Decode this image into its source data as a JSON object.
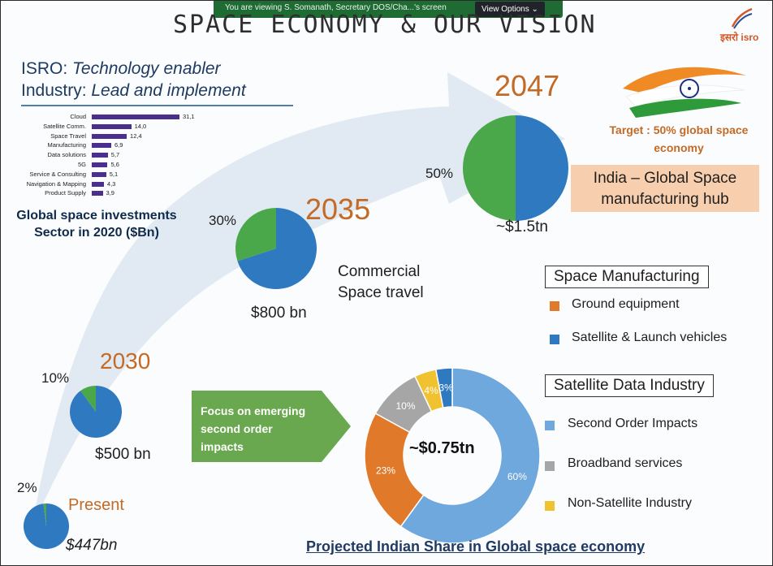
{
  "zoom_banner": {
    "viewing_text": "You are viewing S. Somanath, Secretary DOS/Cha...'s screen",
    "view_options_label": "View Options"
  },
  "slide": {
    "title": "SPACE ECONOMY & OUR VISION",
    "logo_text": "इसरो isro",
    "tagline": {
      "line1_prefix": "ISRO: ",
      "line1_emph": "Technology enabler",
      "line2_prefix": "Industry: ",
      "line2_emph": "Lead and implement"
    },
    "chart_caption_line1": "Global space investments",
    "chart_caption_line2": "Sector in 2020 ($Bn)",
    "milestones": [
      {
        "year": "Present",
        "pct": "2%",
        "value": "$447bn"
      },
      {
        "year": "2030",
        "pct": "10%",
        "value": "$500 bn"
      },
      {
        "year": "2035",
        "pct": "30%",
        "value": "$800 bn"
      },
      {
        "year": "2047",
        "pct": "50%",
        "value": "~$1.5tn"
      }
    ],
    "target_line1": "Target : 50% global space",
    "target_line2": "economy",
    "hub_line1": "India – Global Space",
    "hub_line2": "manufacturing hub",
    "commercial_line1": "Commercial",
    "commercial_line2": "Space travel",
    "legend_manufacturing": {
      "heading": "Space Manufacturing",
      "items": [
        {
          "label": "Ground equipment",
          "color": "#e07a2a"
        },
        {
          "label": "Satellite & Launch vehicles",
          "color": "#2f79c1"
        }
      ]
    },
    "legend_data_industry": {
      "heading": "Satellite Data Industry",
      "items": [
        {
          "label": "Second Order Impacts",
          "color": "#6fa8dc"
        },
        {
          "label": "Broadband services",
          "color": "#a6a6a6"
        },
        {
          "label": "Non-Satellite Industry",
          "color": "#f0c230"
        }
      ]
    },
    "focus_line1": "Focus on emerging",
    "focus_line2": "second order",
    "focus_line3": "impacts",
    "donut_center": "~$0.75tn",
    "donut_caption": "Projected Indian Share in Global space economy"
  },
  "chart_data": [
    {
      "type": "bar",
      "orientation": "horizontal",
      "title": "Global space investments Sector in 2020 ($Bn)",
      "categories": [
        "Cloud",
        "Satellite Comm.",
        "Space Travel",
        "Manufacturing",
        "Data solutions",
        "5G",
        "Service & Consulting",
        "Navigation & Mapping",
        "Product Supply"
      ],
      "values": [
        31.1,
        14.0,
        12.4,
        6.9,
        5.7,
        5.6,
        5.1,
        4.3,
        3.9
      ],
      "value_labels": [
        "31,1",
        "14,0",
        "12,4",
        "6,9",
        "5,7",
        "5,6",
        "5,1",
        "4,3",
        "3,9"
      ],
      "color": "#4b2f8f"
    },
    {
      "type": "pie",
      "title": "",
      "series": [
        {
          "name": "Present",
          "share_pct": 2,
          "total": "$447bn"
        },
        {
          "name": "2030",
          "share_pct": 10,
          "total": "$500 bn"
        },
        {
          "name": "2035",
          "share_pct": 30,
          "total": "$800 bn"
        },
        {
          "name": "2047",
          "share_pct": 50,
          "total": "~$1.5tn"
        }
      ],
      "colors": {
        "share": "#4aa84a",
        "rest": "#2f79c1"
      }
    },
    {
      "type": "pie",
      "title": "Projected Indian Share in Global space economy",
      "center_label": "~$0.75tn",
      "categories": [
        "Second Order Impacts",
        "Ground equipment",
        "Broadband services",
        "Non-Satellite Industry",
        "Satellite & Launch vehicles"
      ],
      "values": [
        60,
        23,
        10,
        4,
        3
      ],
      "labels": [
        "60%",
        "23%",
        "10%",
        "4%",
        "3%"
      ],
      "colors": [
        "#6fa8dc",
        "#e07a2a",
        "#a6a6a6",
        "#f0c230",
        "#2f79c1"
      ]
    }
  ]
}
